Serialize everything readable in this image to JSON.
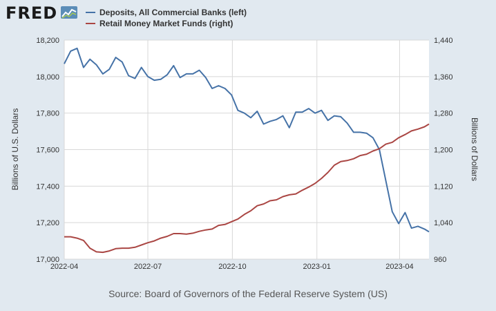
{
  "header": {
    "logo_text": "FRED"
  },
  "colors": {
    "background": "#e1e9f0",
    "plot_background": "#ffffff",
    "deposits": "#4572a7",
    "mmf": "#aa4643"
  },
  "chart_data": {
    "type": "line",
    "title": "",
    "source": "Source: Board of Governors of the Federal Reserve System (US)",
    "x_ticks": [
      "2022-04",
      "2022-07",
      "2022-10",
      "2023-01",
      "2023-04"
    ],
    "x_range": [
      "2022-04-01",
      "2023-05-03"
    ],
    "y_left": {
      "label": "Billions of U.S. Dollars",
      "range": [
        17000,
        18200
      ],
      "ticks": [
        "17,000",
        "17,200",
        "17,400",
        "17,600",
        "17,800",
        "18,000",
        "18,200"
      ]
    },
    "y_right": {
      "label": "Billions of Dollars",
      "range": [
        960,
        1440
      ],
      "ticks": [
        "960",
        "1,040",
        "1,120",
        "1,200",
        "1,280",
        "1,360",
        "1,440"
      ]
    },
    "grid": true,
    "legend_position": "top-left",
    "series": [
      {
        "name": "Deposits, All Commercial Banks (left)",
        "axis": "left",
        "x": [
          "2022-04-01",
          "2022-04-08",
          "2022-04-15",
          "2022-04-22",
          "2022-04-29",
          "2022-05-06",
          "2022-05-13",
          "2022-05-20",
          "2022-05-27",
          "2022-06-03",
          "2022-06-10",
          "2022-06-17",
          "2022-06-24",
          "2022-07-01",
          "2022-07-08",
          "2022-07-15",
          "2022-07-22",
          "2022-07-29",
          "2022-08-05",
          "2022-08-12",
          "2022-08-19",
          "2022-08-26",
          "2022-09-02",
          "2022-09-09",
          "2022-09-16",
          "2022-09-23",
          "2022-09-30",
          "2022-10-07",
          "2022-10-14",
          "2022-10-21",
          "2022-10-28",
          "2022-11-04",
          "2022-11-11",
          "2022-11-18",
          "2022-11-25",
          "2022-12-02",
          "2022-12-09",
          "2022-12-16",
          "2022-12-23",
          "2022-12-30",
          "2023-01-06",
          "2023-01-13",
          "2023-01-20",
          "2023-01-27",
          "2023-02-03",
          "2023-02-10",
          "2023-02-17",
          "2023-02-24",
          "2023-03-03",
          "2023-03-10",
          "2023-03-17",
          "2023-03-24",
          "2023-03-31",
          "2023-04-07",
          "2023-04-14",
          "2023-04-21",
          "2023-04-28",
          "2023-05-03"
        ],
        "values": [
          18070,
          18140,
          18155,
          18050,
          18095,
          18065,
          18015,
          18040,
          18105,
          18080,
          18005,
          17990,
          18050,
          18000,
          17980,
          17985,
          18010,
          18060,
          17995,
          18015,
          18015,
          18035,
          17995,
          17935,
          17950,
          17935,
          17900,
          17815,
          17800,
          17775,
          17810,
          17740,
          17755,
          17765,
          17785,
          17720,
          17805,
          17805,
          17825,
          17800,
          17815,
          17760,
          17785,
          17780,
          17745,
          17695,
          17695,
          17690,
          17665,
          17600,
          17430,
          17260,
          17195,
          17255,
          17170,
          17180,
          17165,
          17150
        ]
      },
      {
        "name": "Retail Money Market Funds (right)",
        "axis": "right",
        "x": [
          "2022-04-01",
          "2022-04-08",
          "2022-04-15",
          "2022-04-22",
          "2022-04-29",
          "2022-05-06",
          "2022-05-13",
          "2022-05-20",
          "2022-05-27",
          "2022-06-03",
          "2022-06-10",
          "2022-06-17",
          "2022-06-24",
          "2022-07-01",
          "2022-07-08",
          "2022-07-15",
          "2022-07-22",
          "2022-07-29",
          "2022-08-05",
          "2022-08-12",
          "2022-08-19",
          "2022-08-26",
          "2022-09-02",
          "2022-09-09",
          "2022-09-16",
          "2022-09-23",
          "2022-09-30",
          "2022-10-07",
          "2022-10-14",
          "2022-10-21",
          "2022-10-28",
          "2022-11-04",
          "2022-11-11",
          "2022-11-18",
          "2022-11-25",
          "2022-12-02",
          "2022-12-09",
          "2022-12-16",
          "2022-12-23",
          "2022-12-30",
          "2023-01-06",
          "2023-01-13",
          "2023-01-20",
          "2023-01-27",
          "2023-02-03",
          "2023-02-10",
          "2023-02-17",
          "2023-02-24",
          "2023-03-03",
          "2023-03-10",
          "2023-03-17",
          "2023-03-24",
          "2023-03-31",
          "2023-04-07",
          "2023-04-14",
          "2023-04-21",
          "2023-04-28",
          "2023-05-03"
        ],
        "values": [
          1009,
          1009,
          1006,
          1001,
          984,
          976,
          975,
          978,
          983,
          984,
          984,
          986,
          991,
          996,
          1000,
          1006,
          1010,
          1016,
          1016,
          1015,
          1017,
          1021,
          1024,
          1026,
          1034,
          1036,
          1042,
          1048,
          1058,
          1066,
          1077,
          1081,
          1088,
          1090,
          1097,
          1101,
          1103,
          1111,
          1118,
          1126,
          1137,
          1150,
          1166,
          1174,
          1176,
          1180,
          1187,
          1190,
          1197,
          1202,
          1212,
          1216,
          1226,
          1233,
          1241,
          1245,
          1250,
          1256
        ]
      }
    ]
  }
}
